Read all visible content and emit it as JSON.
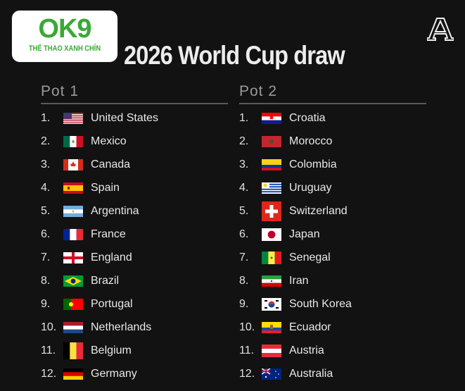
{
  "title": "2026 World Cup draw",
  "watermark": {
    "brand": "OK9",
    "tagline": "THỂ THAO XANH CHÍN"
  },
  "publisher_logo": "athletic-a-logo",
  "pots": [
    {
      "label": "Pot 1",
      "teams": [
        {
          "rank": "1.",
          "name": "United States",
          "flag": "usa"
        },
        {
          "rank": "2.",
          "name": "Mexico",
          "flag": "mex"
        },
        {
          "rank": "3.",
          "name": "Canada",
          "flag": "can"
        },
        {
          "rank": "4.",
          "name": "Spain",
          "flag": "esp"
        },
        {
          "rank": "5.",
          "name": "Argentina",
          "flag": "arg"
        },
        {
          "rank": "6.",
          "name": "France",
          "flag": "fra"
        },
        {
          "rank": "7.",
          "name": "England",
          "flag": "eng"
        },
        {
          "rank": "8.",
          "name": "Brazil",
          "flag": "bra"
        },
        {
          "rank": "9.",
          "name": "Portugal",
          "flag": "por"
        },
        {
          "rank": "10.",
          "name": "Netherlands",
          "flag": "ned"
        },
        {
          "rank": "11.",
          "name": "Belgium",
          "flag": "bel"
        },
        {
          "rank": "12.",
          "name": "Germany",
          "flag": "ger"
        }
      ]
    },
    {
      "label": "Pot 2",
      "teams": [
        {
          "rank": "1.",
          "name": "Croatia",
          "flag": "cro"
        },
        {
          "rank": "2.",
          "name": "Morocco",
          "flag": "mar"
        },
        {
          "rank": "3.",
          "name": "Colombia",
          "flag": "col"
        },
        {
          "rank": "4.",
          "name": "Uruguay",
          "flag": "uru"
        },
        {
          "rank": "5.",
          "name": "Switzerland",
          "flag": "sui"
        },
        {
          "rank": "6.",
          "name": "Japan",
          "flag": "jpn"
        },
        {
          "rank": "7.",
          "name": "Senegal",
          "flag": "sen"
        },
        {
          "rank": "8.",
          "name": "Iran",
          "flag": "irn"
        },
        {
          "rank": "9.",
          "name": "South Korea",
          "flag": "kor"
        },
        {
          "rank": "10.",
          "name": "Ecuador",
          "flag": "ecu"
        },
        {
          "rank": "11.",
          "name": "Austria",
          "flag": "aut"
        },
        {
          "rank": "12.",
          "name": "Australia",
          "flag": "aus"
        }
      ]
    }
  ]
}
